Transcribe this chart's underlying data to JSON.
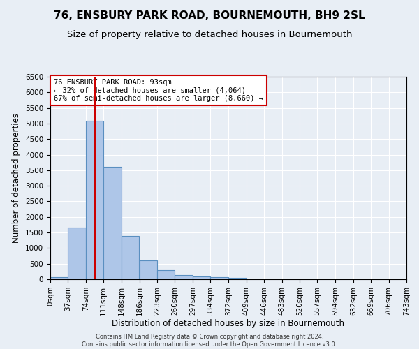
{
  "title": "76, ENSBURY PARK ROAD, BOURNEMOUTH, BH9 2SL",
  "subtitle": "Size of property relative to detached houses in Bournemouth",
  "xlabel": "Distribution of detached houses by size in Bournemouth",
  "ylabel": "Number of detached properties",
  "bar_values": [
    60,
    1650,
    5080,
    3600,
    1400,
    600,
    290,
    145,
    100,
    65,
    40,
    10,
    5,
    2,
    1,
    0,
    0,
    0,
    0,
    0
  ],
  "bin_edges": [
    0,
    37,
    74,
    111,
    148,
    186,
    223,
    260,
    297,
    334,
    372,
    409,
    446,
    483,
    520,
    557,
    594,
    632,
    669,
    706,
    743
  ],
  "x_tick_labels": [
    "0sqm",
    "37sqm",
    "74sqm",
    "111sqm",
    "148sqm",
    "186sqm",
    "223sqm",
    "260sqm",
    "297sqm",
    "334sqm",
    "372sqm",
    "409sqm",
    "446sqm",
    "483sqm",
    "520sqm",
    "557sqm",
    "594sqm",
    "632sqm",
    "669sqm",
    "706sqm",
    "743sqm"
  ],
  "bar_color": "#aec6e8",
  "bar_edge_color": "#5a8fc0",
  "property_line_x": 93,
  "property_line_color": "#cc0000",
  "annotation_text": "76 ENSBURY PARK ROAD: 93sqm\n← 32% of detached houses are smaller (4,064)\n67% of semi-detached houses are larger (8,660) →",
  "annotation_box_color": "#ffffff",
  "annotation_box_edge_color": "#cc0000",
  "ylim": [
    0,
    6500
  ],
  "background_color": "#e8eef5",
  "grid_color": "#ffffff",
  "title_fontsize": 11,
  "subtitle_fontsize": 9.5,
  "axis_label_fontsize": 8.5,
  "tick_fontsize": 7.5,
  "footer_fontsize": 6,
  "annotation_fontsize": 7.5
}
